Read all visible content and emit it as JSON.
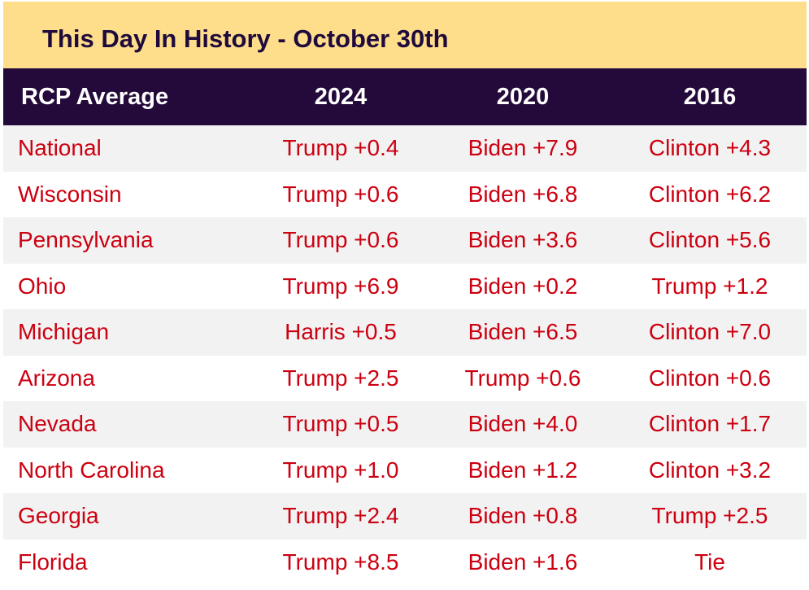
{
  "title": "This Day In History - October 30th",
  "colors": {
    "title_bg": "#fedd8b",
    "title_text": "#1e0a3c",
    "header_bg": "#230a3a",
    "header_text": "#ffffff",
    "cell_text": "#cc0010",
    "row_shade": "#f2f2f2"
  },
  "table": {
    "headers": [
      "RCP Average",
      "2024",
      "2020",
      "2016"
    ],
    "rows": [
      [
        "National",
        "Trump +0.4",
        "Biden +7.9",
        "Clinton +4.3"
      ],
      [
        "Wisconsin",
        "Trump +0.6",
        "Biden +6.8",
        "Clinton +6.2"
      ],
      [
        "Pennsylvania",
        "Trump +0.6",
        "Biden +3.6",
        "Clinton +5.6"
      ],
      [
        "Ohio",
        "Trump +6.9",
        "Biden +0.2",
        "Trump +1.2"
      ],
      [
        "Michigan",
        "Harris +0.5",
        "Biden +6.5",
        "Clinton +7.0"
      ],
      [
        "Arizona",
        "Trump +2.5",
        "Trump +0.6",
        "Clinton +0.6"
      ],
      [
        "Nevada",
        "Trump +0.5",
        "Biden +4.0",
        "Clinton +1.7"
      ],
      [
        "North Carolina",
        "Trump +1.0",
        "Biden +1.2",
        "Clinton +3.2"
      ],
      [
        "Georgia",
        "Trump +2.4",
        "Biden +0.8",
        "Trump +2.5"
      ],
      [
        "Florida",
        "Trump +8.5",
        "Biden +1.6",
        "Tie"
      ]
    ]
  }
}
